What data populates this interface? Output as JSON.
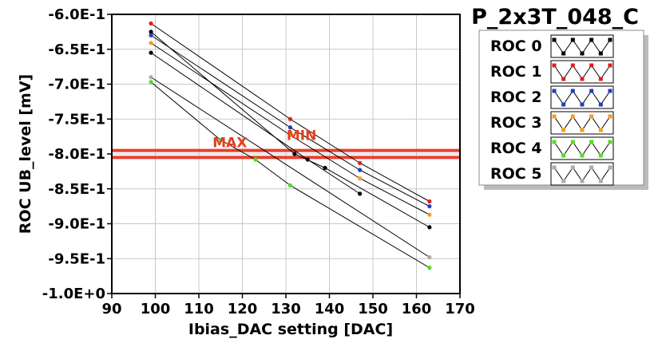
{
  "chart_data": {
    "type": "line",
    "title": "P_2x3T_048_C",
    "xlabel": "Ibias_DAC setting [DAC]",
    "ylabel": "ROC UB_level [mV]",
    "xlim": [
      90,
      170
    ],
    "ylim": [
      -1.0,
      -0.6
    ],
    "x_ticks": [
      90,
      100,
      110,
      120,
      130,
      140,
      150,
      160,
      170
    ],
    "y_ticks": [
      -0.6,
      -0.65,
      -0.7,
      -0.75,
      -0.8,
      -0.85,
      -0.9,
      -0.95,
      -1.0
    ],
    "y_tick_labels": [
      "-6.0E-1",
      "-6.5E-1",
      "-7.0E-1",
      "-7.5E-1",
      "-8.0E-1",
      "-8.5E-1",
      "-9.0E-1",
      "-9.5E-1",
      "-1.0E+0"
    ],
    "grid": true,
    "legend_position": "top-right",
    "series": [
      {
        "name": "ROC 0",
        "color": "#000000",
        "x": [
          99,
          135,
          147
        ],
        "y": [
          -0.655,
          -0.808,
          -0.857
        ],
        "x2": [
          99,
          132,
          139,
          163
        ],
        "y2": [
          -0.625,
          -0.8,
          -0.82,
          -0.905
        ]
      },
      {
        "name": "ROC 1",
        "color": "#e02020",
        "x": [
          99,
          131,
          147,
          163
        ],
        "y": [
          -0.613,
          -0.75,
          -0.813,
          -0.868
        ]
      },
      {
        "name": "ROC 2",
        "color": "#1f3fbf",
        "x": [
          99,
          131,
          147,
          163
        ],
        "y": [
          -0.63,
          -0.762,
          -0.823,
          -0.875
        ]
      },
      {
        "name": "ROC 3",
        "color": "#f0a020",
        "x": [
          99,
          131,
          147,
          163
        ],
        "y": [
          -0.641,
          -0.773,
          -0.835,
          -0.887
        ]
      },
      {
        "name": "ROC 4",
        "color": "#55dd22",
        "x": [
          99,
          115,
          123,
          131,
          163
        ],
        "y": [
          -0.697,
          -0.78,
          -0.808,
          -0.845,
          -0.963
        ]
      },
      {
        "name": "ROC 5",
        "color": "#aaaaaa",
        "x": [
          99,
          163
        ],
        "y": [
          -0.69,
          -0.948
        ]
      }
    ],
    "hlines": [
      {
        "y": -0.795,
        "color": "#e84030"
      },
      {
        "y": -0.805,
        "color": "#e84030"
      }
    ],
    "annotations": [
      {
        "text": "MAX",
        "x": 115,
        "y": -0.79
      },
      {
        "text": "MIN",
        "x": 132,
        "y": -0.78
      }
    ]
  }
}
